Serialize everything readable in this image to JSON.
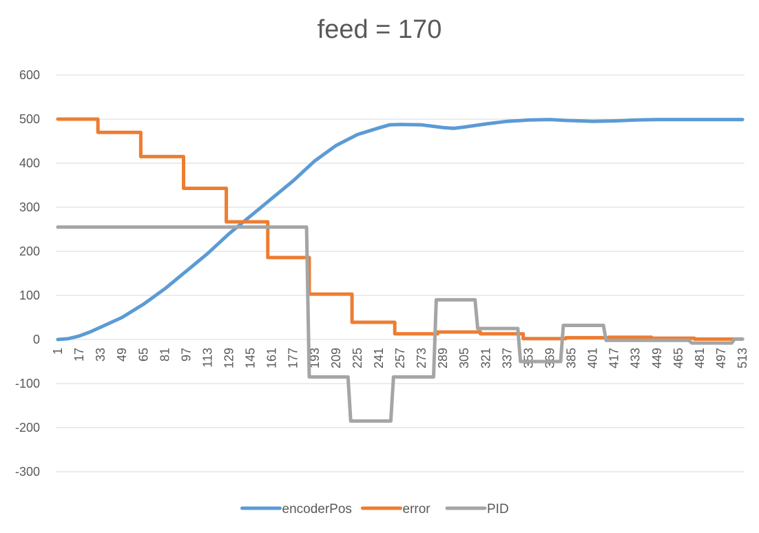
{
  "chart_data": {
    "type": "line",
    "title": "feed = 170",
    "xlabel": "",
    "ylabel": "",
    "ylim": [
      -300,
      600
    ],
    "yticks": [
      -300,
      -200,
      -100,
      0,
      100,
      200,
      300,
      400,
      500,
      600
    ],
    "xlim": [
      1,
      513
    ],
    "xtick_labels": [
      "1",
      "17",
      "33",
      "49",
      "65",
      "81",
      "97",
      "113",
      "129",
      "145",
      "161",
      "177",
      "193",
      "209",
      "225",
      "241",
      "257",
      "273",
      "289",
      "305",
      "321",
      "337",
      "353",
      "369",
      "385",
      "401",
      "417",
      "433",
      "449",
      "465",
      "481",
      "497",
      "513"
    ],
    "grid": true,
    "legend_position": "bottom",
    "series": [
      {
        "name": "encoderPos",
        "color": "#5b9bd5",
        "points": [
          [
            1,
            0
          ],
          [
            9,
            2
          ],
          [
            17,
            8
          ],
          [
            25,
            17
          ],
          [
            33,
            28
          ],
          [
            49,
            50
          ],
          [
            65,
            80
          ],
          [
            81,
            115
          ],
          [
            97,
            155
          ],
          [
            113,
            195
          ],
          [
            129,
            240
          ],
          [
            145,
            280
          ],
          [
            161,
            320
          ],
          [
            177,
            360
          ],
          [
            193,
            405
          ],
          [
            209,
            440
          ],
          [
            225,
            465
          ],
          [
            241,
            480
          ],
          [
            249,
            487
          ],
          [
            257,
            488
          ],
          [
            273,
            487
          ],
          [
            289,
            481
          ],
          [
            297,
            479
          ],
          [
            305,
            482
          ],
          [
            321,
            489
          ],
          [
            337,
            495
          ],
          [
            353,
            498
          ],
          [
            369,
            499
          ],
          [
            381,
            497
          ],
          [
            393,
            496
          ],
          [
            401,
            495
          ],
          [
            417,
            496
          ],
          [
            433,
            498
          ],
          [
            449,
            499
          ],
          [
            481,
            499
          ],
          [
            513,
            499
          ]
        ]
      },
      {
        "name": "error",
        "color": "#ed7d31",
        "points": [
          [
            1,
            500
          ],
          [
            31,
            500
          ],
          [
            31,
            470
          ],
          [
            63,
            470
          ],
          [
            63,
            415
          ],
          [
            95,
            415
          ],
          [
            95,
            343
          ],
          [
            127,
            343
          ],
          [
            127,
            267
          ],
          [
            158,
            267
          ],
          [
            158,
            186
          ],
          [
            189,
            186
          ],
          [
            189,
            103
          ],
          [
            221,
            103
          ],
          [
            221,
            39
          ],
          [
            253,
            39
          ],
          [
            253,
            13
          ],
          [
            285,
            13
          ],
          [
            285,
            17
          ],
          [
            317,
            17
          ],
          [
            317,
            13
          ],
          [
            349,
            13
          ],
          [
            349,
            2
          ],
          [
            381,
            2
          ],
          [
            381,
            4
          ],
          [
            413,
            4
          ],
          [
            413,
            5
          ],
          [
            445,
            5
          ],
          [
            445,
            3
          ],
          [
            477,
            3
          ],
          [
            477,
            1
          ],
          [
            513,
            1
          ]
        ]
      },
      {
        "name": "PID",
        "color": "#a5a5a5",
        "points": [
          [
            1,
            255
          ],
          [
            187,
            255
          ],
          [
            189,
            -85
          ],
          [
            218,
            -85
          ],
          [
            220,
            -185
          ],
          [
            250,
            -185
          ],
          [
            252,
            -85
          ],
          [
            282,
            -85
          ],
          [
            284,
            90
          ],
          [
            313,
            90
          ],
          [
            315,
            25
          ],
          [
            345,
            25
          ],
          [
            347,
            -50
          ],
          [
            377,
            -50
          ],
          [
            379,
            32
          ],
          [
            409,
            32
          ],
          [
            411,
            -2
          ],
          [
            441,
            -2
          ],
          [
            443,
            -2
          ],
          [
            473,
            -2
          ],
          [
            475,
            -8
          ],
          [
            505,
            -8
          ],
          [
            507,
            1
          ],
          [
            513,
            1
          ]
        ]
      }
    ]
  }
}
